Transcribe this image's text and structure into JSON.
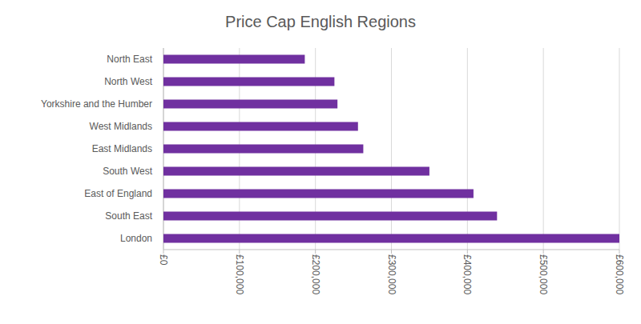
{
  "chart_data": {
    "type": "bar",
    "title": "Price Cap English Regions",
    "orientation": "horizontal",
    "categories": [
      "North East",
      "North West",
      "Yorkshire and the Humber",
      "West Midlands",
      "East Midlands",
      "South West",
      "East of England",
      "South East",
      "London"
    ],
    "values": [
      186000,
      225000,
      229000,
      256000,
      263000,
      350000,
      408000,
      439000,
      600000
    ],
    "color": "#7030a0",
    "xlim": [
      0,
      600000
    ],
    "xticks": [
      {
        "value": 0,
        "label": "£0"
      },
      {
        "value": 100000,
        "label": "£100,000"
      },
      {
        "value": 200000,
        "label": "£200,000"
      },
      {
        "value": 300000,
        "label": "£300,000"
      },
      {
        "value": 400000,
        "label": "£400,000"
      },
      {
        "value": 500000,
        "label": "£500,000"
      },
      {
        "value": 600000,
        "label": "£600,000"
      }
    ],
    "grid": true
  }
}
